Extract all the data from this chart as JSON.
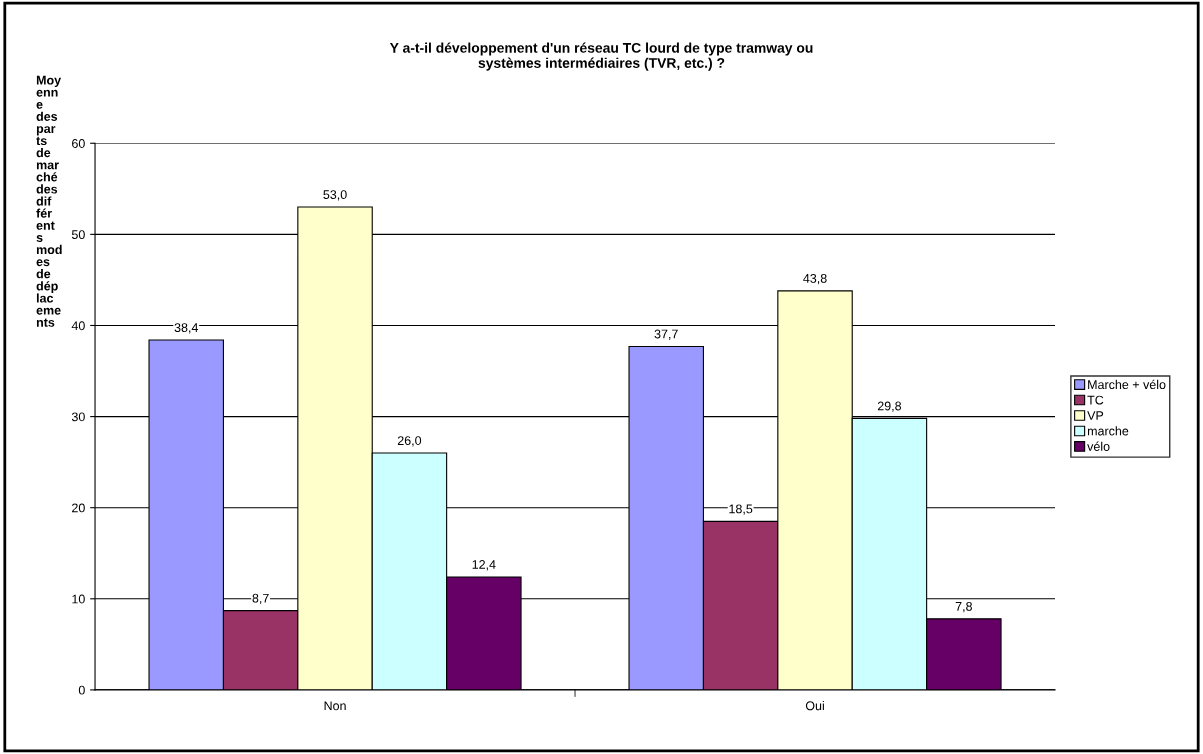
{
  "chart_data": {
    "type": "bar",
    "title": "Y a-t-il développement d'un réseau TC lourd de type tramway ou\nsystèmes intermédiaires (TVR, etc.) ?",
    "ylabel": "Moyenne des parts de marché des différents modes de déplacements",
    "categories": [
      "Non",
      "Oui"
    ],
    "series": [
      {
        "name": "Marche + vélo",
        "color": "#9999ff",
        "values": [
          38.4,
          37.7
        ],
        "value_labels": [
          "38,4",
          "37,7"
        ]
      },
      {
        "name": "TC",
        "color": "#993366",
        "values": [
          8.7,
          18.5
        ],
        "value_labels": [
          "8,7",
          "18,5"
        ]
      },
      {
        "name": "VP",
        "color": "#ffffcc",
        "values": [
          53.0,
          43.8
        ],
        "value_labels": [
          "53,0",
          "43,8"
        ]
      },
      {
        "name": "marche",
        "color": "#ccffff",
        "values": [
          26.0,
          29.8
        ],
        "value_labels": [
          "26,0",
          "29,8"
        ]
      },
      {
        "name": "vélo",
        "color": "#660066",
        "values": [
          12.4,
          7.8
        ],
        "value_labels": [
          "12,4",
          "7,8"
        ]
      }
    ],
    "ylim": [
      0,
      60
    ],
    "yticks": [
      0,
      10,
      20,
      30,
      40,
      50,
      60
    ],
    "grid": "y",
    "legend": "right"
  }
}
